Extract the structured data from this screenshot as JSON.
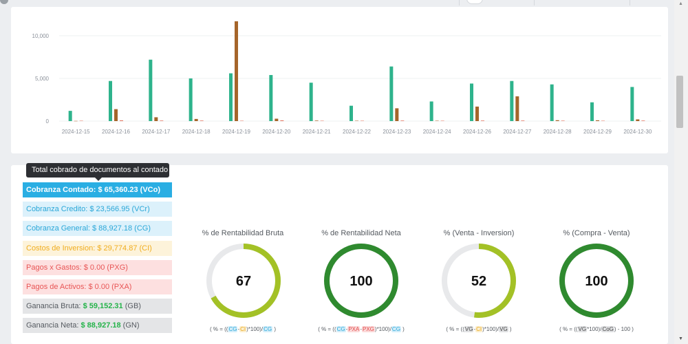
{
  "chart_data": {
    "type": "bar",
    "categories": [
      "2024-12-15",
      "2024-12-16",
      "2024-12-17",
      "2024-12-18",
      "2024-12-19",
      "2024-12-20",
      "2024-12-21",
      "2024-12-22",
      "2024-12-23",
      "2024-12-24",
      "2024-12-26",
      "2024-12-27",
      "2024-12-28",
      "2024-12-29",
      "2024-12-30"
    ],
    "series": [
      {
        "color": "#2eb38c",
        "values": [
          1200,
          4700,
          7200,
          5000,
          5600,
          5400,
          4500,
          1800,
          6400,
          2300,
          4400,
          4700,
          4300,
          2200,
          4000
        ]
      },
      {
        "color": "#a5652a",
        "values": [
          20,
          1400,
          450,
          250,
          11700,
          280,
          60,
          40,
          1500,
          40,
          1700,
          2900,
          100,
          90,
          200
        ]
      },
      {
        "color": "#e0705a",
        "values": [
          40,
          80,
          60,
          60,
          40,
          80,
          40,
          40,
          60,
          40,
          60,
          60,
          50,
          40,
          60
        ]
      }
    ],
    "yticks": [
      "0",
      "5,000",
      "10,000"
    ],
    "ytick_values": [
      0,
      5000,
      10000
    ],
    "ylim": [
      0,
      12000
    ],
    "grid": true
  },
  "tooltip": "Total cobrado de documentos al contado",
  "stats": [
    {
      "label": "Cobranza Contado: $ 65,360.23 (VCo)",
      "value": ""
    },
    {
      "label": "Cobranza Credito: $ 23,566.95 (VCr)",
      "value": ""
    },
    {
      "label": "Cobranza General: $ 88,927.18 (CG)",
      "value": ""
    },
    {
      "label": "Costos de Inversion: $ 29,774.87 (CI)",
      "value": ""
    },
    {
      "label": "Pagos x Gastos: $ 0.00 (PXG)",
      "value": ""
    },
    {
      "label": "Pagos de Activos: $ 0.00 (PXA)",
      "value": ""
    },
    {
      "label": "Ganancia Bruta: ",
      "value": "$ 59,152.31",
      "suffix": " (GB)"
    },
    {
      "label": "Ganancia Neta: ",
      "value": "$ 88,927.18",
      "suffix": " (GN)"
    }
  ],
  "gauges": [
    {
      "title": "% de Rentabilidad Bruta",
      "value": "67",
      "percent": 67,
      "color": "#a3c126"
    },
    {
      "title": "% de Rentabilidad Neta",
      "value": "100",
      "percent": 100,
      "color": "#2f8a2f"
    },
    {
      "title": "% (Venta - Inversion)",
      "value": "52",
      "percent": 52,
      "color": "#a3c126"
    },
    {
      "title": "% (Compra - Venta)",
      "value": "100",
      "percent": 100,
      "color": "#2f8a2f"
    }
  ],
  "formulas": {
    "f1": {
      "pre": "( % = ((",
      "a": "CG",
      "dash": "-",
      "b": "CI",
      "mid": ")*100)/",
      "c": "CG",
      "post": " )"
    },
    "f2": {
      "pre": "( % = ((",
      "a": "CG",
      "d1": "-",
      "b": "PXA",
      "d2": "-",
      "x": "PXG",
      "mid": ")*100)/",
      "c": "CG",
      "post": " )"
    },
    "f3": {
      "pre": "( % = ((",
      "a": "VG",
      "dash": "-",
      "b": "CI",
      "mid": ")*100)/",
      "c": "VG",
      "post": " )"
    },
    "f4": {
      "pre": "( % = ((",
      "a": "VG",
      "mid": "*100)/",
      "c": "CoG",
      "post": ") - 100 )"
    }
  }
}
